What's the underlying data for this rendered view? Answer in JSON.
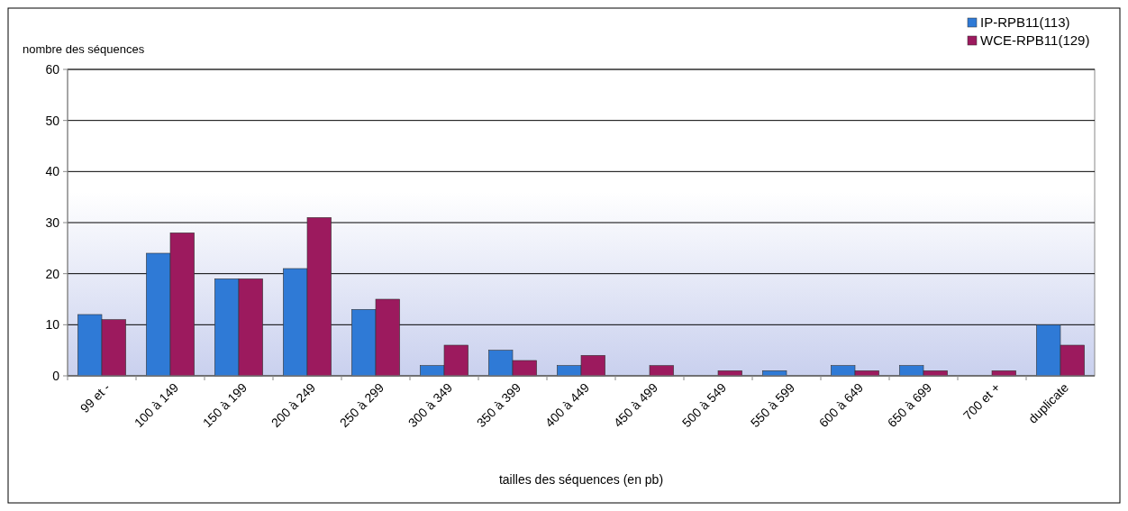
{
  "chart_data": {
    "type": "bar",
    "xlabel": "tailles des séquences (en pb)",
    "ylabel": "nombre des séquences",
    "categories": [
      "99 et -",
      "100 à 149",
      "150 à 199",
      "200 à 249",
      "250 à 299",
      "300 à 349",
      "350 à 399",
      "400 à 449",
      "450 à 499",
      "500 à 549",
      "550 à 599",
      "600 à 649",
      "650 à 699",
      "700 et +",
      "duplicate"
    ],
    "series": [
      {
        "name": "IP-RPB11(113)",
        "color": "#2f7ad6",
        "values": [
          12,
          24,
          19,
          21,
          13,
          2,
          5,
          2,
          0,
          0,
          1,
          2,
          2,
          0,
          10
        ]
      },
      {
        "name": "WCE-RPB11(129)",
        "color": "#9c1a5e",
        "values": [
          11,
          28,
          19,
          31,
          15,
          6,
          3,
          4,
          2,
          1,
          0,
          1,
          1,
          1,
          6
        ]
      }
    ],
    "ylim": [
      0,
      60
    ],
    "yticks": [
      0,
      10,
      20,
      30,
      40,
      50,
      60
    ],
    "grid": "y",
    "legend": "top right"
  }
}
